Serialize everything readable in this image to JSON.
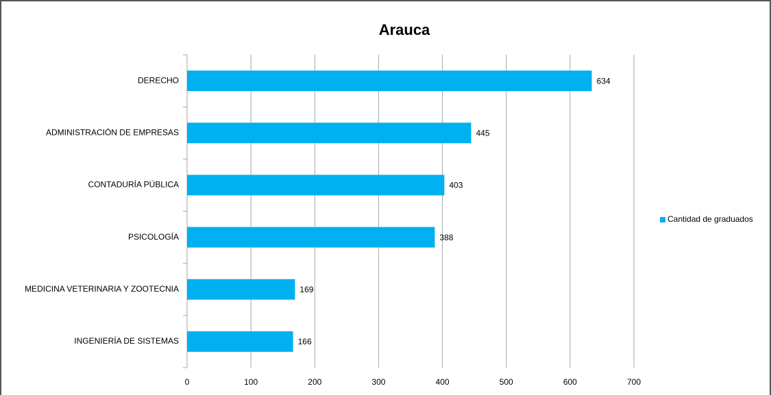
{
  "chart_data": {
    "type": "bar",
    "orientation": "horizontal",
    "title": "Arauca",
    "categories": [
      "DERECHO",
      "ADMINISTRACIÓN DE EMPRESAS",
      "CONTADURÍA PÚBLICA",
      "PSICOLOGÍA",
      "MEDICINA VETERINARIA Y ZOOTECNIA",
      "INGENIERÍA DE SISTEMAS"
    ],
    "series": [
      {
        "name": "Cantidad de graduados",
        "color": "#00b0f0",
        "values": [
          634,
          445,
          403,
          388,
          169,
          166
        ]
      }
    ],
    "xlim": [
      0,
      700
    ],
    "xticks": [
      0,
      100,
      200,
      300,
      400,
      500,
      600,
      700
    ],
    "grid": true,
    "legend": "right"
  }
}
